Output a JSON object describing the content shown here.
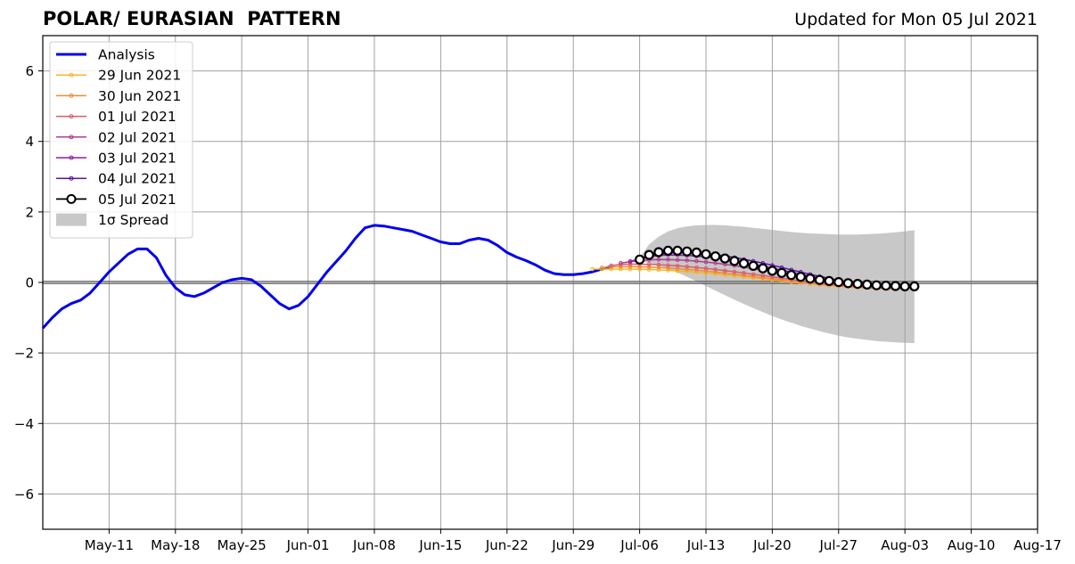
{
  "header": {
    "title": "POLAR/ EURASIAN  PATTERN",
    "updated": "Updated for Mon 05 Jul 2021"
  },
  "chart_data": {
    "type": "line",
    "ylim": [
      -7,
      7
    ],
    "yticks": [
      6,
      4,
      2,
      0,
      -2,
      -4,
      -6
    ],
    "ytick_labels": [
      "6",
      "4",
      "2",
      "0",
      "−2",
      "−4",
      "−6"
    ],
    "xlim": [
      "2021-05-04",
      "2021-08-17"
    ],
    "xticks": [
      {
        "date": "2021-05-11",
        "label": "May-11"
      },
      {
        "date": "2021-05-18",
        "label": "May-18"
      },
      {
        "date": "2021-05-25",
        "label": "May-25"
      },
      {
        "date": "2021-06-01",
        "label": "Jun-01"
      },
      {
        "date": "2021-06-08",
        "label": "Jun-08"
      },
      {
        "date": "2021-06-15",
        "label": "Jun-15"
      },
      {
        "date": "2021-06-22",
        "label": "Jun-22"
      },
      {
        "date": "2021-06-29",
        "label": "Jun-29"
      },
      {
        "date": "2021-07-06",
        "label": "Jul-06"
      },
      {
        "date": "2021-07-13",
        "label": "Jul-13"
      },
      {
        "date": "2021-07-20",
        "label": "Jul-20"
      },
      {
        "date": "2021-07-27",
        "label": "Jul-27"
      },
      {
        "date": "2021-08-03",
        "label": "Aug-03"
      },
      {
        "date": "2021-08-10",
        "label": "Aug-10"
      },
      {
        "date": "2021-08-17",
        "label": "Aug-17"
      }
    ],
    "grid": true,
    "legend_position": "upper-left",
    "analysis": {
      "name": "Analysis",
      "color": "#0000ee",
      "start_date": "2021-05-04",
      "values": [
        -1.3,
        -1.0,
        -0.75,
        -0.6,
        -0.5,
        -0.3,
        0.0,
        0.3,
        0.55,
        0.8,
        0.95,
        0.95,
        0.7,
        0.2,
        -0.15,
        -0.35,
        -0.4,
        -0.3,
        -0.15,
        0.0,
        0.08,
        0.12,
        0.08,
        -0.1,
        -0.35,
        -0.6,
        -0.75,
        -0.65,
        -0.4,
        -0.05,
        0.3,
        0.6,
        0.9,
        1.25,
        1.55,
        1.62,
        1.6,
        1.55,
        1.5,
        1.45,
        1.35,
        1.25,
        1.15,
        1.1,
        1.1,
        1.2,
        1.25,
        1.2,
        1.05,
        0.85,
        0.72,
        0.62,
        0.5,
        0.35,
        0.25,
        0.22,
        0.22,
        0.25,
        0.3,
        0.38,
        0.45
      ]
    },
    "forecasts": [
      {
        "name": "29 Jun 2021",
        "color": "#f5b72a",
        "start_date": "2021-07-01",
        "start": 0.38,
        "peak": 0.38,
        "peak_idx": 3,
        "end": -0.18
      },
      {
        "name": "30 Jun 2021",
        "color": "#ee8b38",
        "start_date": "2021-07-02",
        "start": 0.42,
        "peak": 0.45,
        "peak_idx": 2,
        "end": -0.18
      },
      {
        "name": "01 Jul 2021",
        "color": "#dc5c66",
        "start_date": "2021-07-03",
        "start": 0.48,
        "peak": 0.52,
        "peak_idx": 2,
        "end": -0.17
      },
      {
        "name": "02 Jul 2021",
        "color": "#b03c8e",
        "start_date": "2021-07-04",
        "start": 0.55,
        "peak": 0.65,
        "peak_idx": 4,
        "end": -0.15
      },
      {
        "name": "03 Jul 2021",
        "color": "#8a1ea2",
        "start_date": "2021-07-05",
        "start": 0.6,
        "peak": 0.78,
        "peak_idx": 4,
        "end": -0.14
      },
      {
        "name": "04 Jul 2021",
        "color": "#5a10a0",
        "start_date": "2021-07-06",
        "start": 0.65,
        "peak": 0.85,
        "peak_idx": 4,
        "end": -0.13
      }
    ],
    "latest_forecast": {
      "name": "05 Jul 2021",
      "color": "#000000",
      "start_date": "2021-07-06",
      "values": [
        0.65,
        0.78,
        0.86,
        0.9,
        0.9,
        0.88,
        0.85,
        0.8,
        0.74,
        0.68,
        0.61,
        0.54,
        0.47,
        0.4,
        0.33,
        0.27,
        0.21,
        0.16,
        0.11,
        0.07,
        0.04,
        0.01,
        -0.02,
        -0.04,
        -0.06,
        -0.08,
        -0.09,
        -0.1,
        -0.11,
        -0.11
      ]
    },
    "spread": {
      "name": "1σ Spread",
      "color": "#c8c8c8",
      "start_date": "2021-07-06",
      "upper": [
        0.7,
        1.08,
        1.3,
        1.45,
        1.54,
        1.59,
        1.62,
        1.63,
        1.63,
        1.62,
        1.6,
        1.58,
        1.55,
        1.52,
        1.49,
        1.46,
        1.43,
        1.41,
        1.39,
        1.38,
        1.37,
        1.36,
        1.36,
        1.36,
        1.37,
        1.38,
        1.4,
        1.42,
        1.45,
        1.48
      ],
      "lower": [
        0.6,
        0.55,
        0.48,
        0.38,
        0.28,
        0.16,
        0.03,
        -0.1,
        -0.23,
        -0.36,
        -0.49,
        -0.61,
        -0.73,
        -0.84,
        -0.95,
        -1.05,
        -1.14,
        -1.23,
        -1.31,
        -1.38,
        -1.45,
        -1.51,
        -1.56,
        -1.6,
        -1.63,
        -1.66,
        -1.68,
        -1.7,
        -1.71,
        -1.72
      ]
    }
  }
}
